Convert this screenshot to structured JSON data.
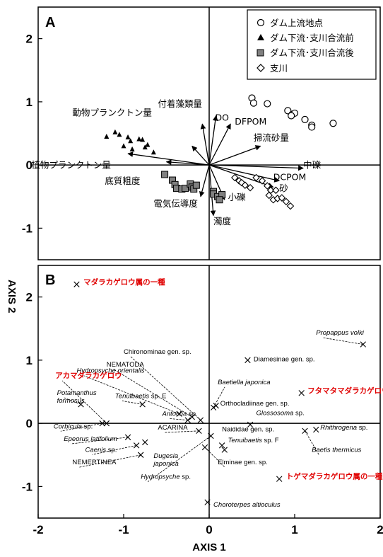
{
  "chart_data": [
    {
      "type": "scatter",
      "panel_label": "A",
      "xlim": [
        -2,
        2
      ],
      "ylim": [
        -1.5,
        2.5
      ],
      "yticks": [
        "2",
        "1",
        "0",
        "-1"
      ],
      "axis_label_y": "AXIS 2",
      "legend": {
        "placement": "top-right",
        "entries": [
          "ダム上流地点",
          "ダム下流･支川合流前",
          "ダム下流･支川合流後",
          "支川"
        ]
      },
      "series": [
        {
          "name": "ダム上流地点",
          "marker": "circle",
          "points": [
            [
              0.5,
              1.06
            ],
            [
              0.52,
              0.98
            ],
            [
              0.68,
              0.97
            ],
            [
              0.92,
              0.86
            ],
            [
              0.97,
              0.8
            ],
            [
              1.0,
              0.82
            ],
            [
              1.12,
              0.72
            ],
            [
              1.2,
              0.63
            ],
            [
              1.2,
              0.6
            ],
            [
              1.45,
              0.66
            ],
            [
              0.96,
              0.78
            ]
          ]
        },
        {
          "name": "ダム下流･支川合流前",
          "marker": "triangle",
          "points": [
            [
              -1.2,
              0.45
            ],
            [
              -1.1,
              0.52
            ],
            [
              -1.05,
              0.48
            ],
            [
              -0.95,
              0.44
            ],
            [
              -0.92,
              0.38
            ],
            [
              -0.82,
              0.41
            ],
            [
              -0.78,
              0.4
            ],
            [
              -0.72,
              0.32
            ],
            [
              -0.75,
              0.28
            ],
            [
              -1.0,
              0.3
            ],
            [
              -0.9,
              0.25
            ],
            [
              -0.65,
              0.2
            ]
          ]
        },
        {
          "name": "ダム下流･支川合流後",
          "marker": "square",
          "points": [
            [
              -0.52,
              -0.15
            ],
            [
              -0.43,
              -0.24
            ],
            [
              -0.4,
              -0.31
            ],
            [
              -0.38,
              -0.37
            ],
            [
              -0.32,
              -0.38
            ],
            [
              -0.28,
              -0.37
            ],
            [
              -0.22,
              -0.3
            ],
            [
              -0.2,
              -0.35
            ],
            [
              -0.18,
              -0.38
            ],
            [
              -0.15,
              -0.32
            ],
            [
              0.05,
              -0.42
            ],
            [
              0.05,
              -0.46
            ],
            [
              0.1,
              -0.5
            ],
            [
              0.15,
              -0.47
            ],
            [
              0.12,
              -0.55
            ]
          ]
        },
        {
          "name": "支川",
          "marker": "diamond",
          "points": [
            [
              0.3,
              -0.2
            ],
            [
              0.35,
              -0.25
            ],
            [
              0.38,
              -0.28
            ],
            [
              0.42,
              -0.32
            ],
            [
              0.48,
              -0.36
            ],
            [
              0.55,
              -0.2
            ],
            [
              0.62,
              -0.25
            ],
            [
              0.68,
              -0.33
            ],
            [
              0.72,
              -0.4
            ],
            [
              0.7,
              -0.48
            ],
            [
              0.75,
              -0.55
            ],
            [
              0.8,
              -0.53
            ],
            [
              0.85,
              -0.52
            ],
            [
              0.9,
              -0.58
            ],
            [
              0.95,
              -0.65
            ],
            [
              0.78,
              -0.4
            ]
          ]
        }
      ],
      "vectors": [
        {
          "label": "付着藻類量",
          "x": -0.08,
          "y": 0.65,
          "lx": -0.6,
          "ly": 0.92
        },
        {
          "label": "動物プランクトン量",
          "x": -0.2,
          "y": 0.3,
          "lx": -1.6,
          "ly": 0.78
        },
        {
          "label": "DO",
          "x": 0.08,
          "y": 0.78,
          "lx": 0.07,
          "ly": 0.7
        },
        {
          "label": "DFPOM",
          "x": 0.25,
          "y": 0.65,
          "lx": 0.3,
          "ly": 0.64
        },
        {
          "label": "掃流砂量",
          "x": 0.6,
          "y": 0.3,
          "lx": 0.52,
          "ly": 0.38
        },
        {
          "label": "植物プランクトン量",
          "x": -0.95,
          "y": 0.18,
          "lx": -2.08,
          "ly": -0.05
        },
        {
          "label": "底質粗度",
          "x": -0.5,
          "y": 0.05,
          "lx": -1.22,
          "ly": -0.3
        },
        {
          "label": "中礫",
          "x": 1.1,
          "y": -0.05,
          "lx": 1.1,
          "ly": -0.05
        },
        {
          "label": "DCPOM",
          "x": 0.82,
          "y": -0.25,
          "lx": 0.75,
          "ly": -0.24
        },
        {
          "label": "砂",
          "x": 0.75,
          "y": -0.35,
          "lx": 0.82,
          "ly": -0.42
        },
        {
          "label": "電気伝導度",
          "x": -0.1,
          "y": -0.5,
          "lx": -0.65,
          "ly": -0.66
        },
        {
          "label": "小礫",
          "x": 0.18,
          "y": -0.55,
          "lx": 0.22,
          "ly": -0.56
        },
        {
          "label": "濁度",
          "x": 0.05,
          "y": -0.8,
          "lx": 0.05,
          "ly": -0.94
        }
      ]
    },
    {
      "type": "scatter",
      "panel_label": "B",
      "xlim": [
        -2,
        2
      ],
      "ylim": [
        -1.5,
        2.5
      ],
      "xticks": [
        "-2",
        "-1",
        "0",
        "1",
        "2"
      ],
      "yticks": [
        "2",
        "1",
        "0",
        "-1"
      ],
      "axis_label_x": "AXIS 1",
      "species": [
        {
          "label": "マダラカゲロウ属の一種",
          "x": -1.55,
          "y": 2.2,
          "style": "red",
          "lx": -1.47,
          "ly": 2.2
        },
        {
          "label": "Propappus volki",
          "x": 1.8,
          "y": 1.25,
          "style": "italic",
          "lx": 1.25,
          "ly": 1.4
        },
        {
          "label": "Diamesinae gen. sp.",
          "x": 0.45,
          "y": 1.0,
          "style": "normal",
          "lx": 0.52,
          "ly": 0.98
        },
        {
          "label": "Chironominae gen. sp.",
          "x": -0.1,
          "y": 0.05,
          "style": "normal",
          "lx": -1.0,
          "ly": 1.1
        },
        {
          "label": "NEMATODA",
          "x": -0.2,
          "y": 0.1,
          "style": "normal",
          "lx": -1.2,
          "ly": 0.9
        },
        {
          "label": "Hydropsyche orientalis",
          "x": -0.35,
          "y": 0.15,
          "style": "italic",
          "lx": -1.55,
          "ly": 0.8
        },
        {
          "label": "Baetiella japonica",
          "x": 0.05,
          "y": 0.25,
          "style": "italic",
          "lx": 0.1,
          "ly": 0.62
        },
        {
          "label": "アカマダラカゲロウ",
          "x": -1.2,
          "y": 0.0,
          "style": "red",
          "lx": -1.8,
          "ly": 0.72
        },
        {
          "label": "フタマタマダラカゲロウ",
          "x": 1.08,
          "y": 0.48,
          "style": "red",
          "lx": 1.15,
          "ly": 0.48
        },
        {
          "label": "Tenuibaetis sp. E",
          "x": -0.78,
          "y": 0.3,
          "style": "mixed",
          "lx": -1.1,
          "ly": 0.4
        },
        {
          "label": "Potamanthus formosus",
          "x": -1.5,
          "y": 0.3,
          "style": "italic",
          "lx": -1.78,
          "ly": 0.45
        },
        {
          "label": "Orthocladiinae gen. sp.",
          "x": 0.08,
          "y": 0.28,
          "style": "normal",
          "lx": 0.13,
          "ly": 0.28
        },
        {
          "label": "Antocha sp.",
          "x": -0.25,
          "y": 0.05,
          "style": "mixed",
          "lx": -0.55,
          "ly": 0.12
        },
        {
          "label": "Glossosoma sp.",
          "x": 0.48,
          "y": -0.02,
          "style": "mixed",
          "lx": 0.55,
          "ly": 0.13
        },
        {
          "label": "Corbicula sp.",
          "x": -1.25,
          "y": 0.0,
          "style": "mixed",
          "lx": -1.82,
          "ly": -0.08
        },
        {
          "label": "ACARINA",
          "x": -0.12,
          "y": -0.12,
          "style": "normal",
          "lx": -0.6,
          "ly": -0.1
        },
        {
          "label": "Naididae gen. sp.",
          "x": 0.15,
          "y": -0.35,
          "style": "normal",
          "lx": 0.15,
          "ly": -0.13
        },
        {
          "label": "Rhithrogena sp.",
          "x": 1.25,
          "y": -0.1,
          "style": "mixed",
          "lx": 1.3,
          "ly": -0.1
        },
        {
          "label": "Epeorus latifolium",
          "x": -0.95,
          "y": -0.22,
          "style": "italic",
          "lx": -1.7,
          "ly": -0.28
        },
        {
          "label": "Tenuibaetis sp. F",
          "x": 0.18,
          "y": -0.42,
          "style": "mixed",
          "lx": 0.22,
          "ly": -0.3
        },
        {
          "label": "Baetis thermicus",
          "x": 1.12,
          "y": -0.12,
          "style": "italic",
          "lx": 1.2,
          "ly": -0.45
        },
        {
          "label": "Caenis sp.",
          "x": -0.85,
          "y": -0.35,
          "style": "mixed",
          "lx": -1.45,
          "ly": -0.45
        },
        {
          "label": "Dugesia japonica",
          "x": -0.75,
          "y": -0.3,
          "style": "italic",
          "lx": -0.65,
          "ly": -0.55
        },
        {
          "label": "NEMERTINEA",
          "x": -0.8,
          "y": -0.5,
          "style": "normal",
          "lx": -1.6,
          "ly": -0.65
        },
        {
          "label": "Elminae gen. sp.",
          "x": -0.05,
          "y": -0.38,
          "style": "normal",
          "lx": 0.1,
          "ly": -0.65
        },
        {
          "label": "Hydropsyche sp.",
          "x": 0.02,
          "y": -0.2,
          "style": "mixed",
          "lx": -0.8,
          "ly": -0.88
        },
        {
          "label": "トゲマダラカゲロウ属の一種",
          "x": 0.82,
          "y": -0.88,
          "style": "red",
          "lx": 0.9,
          "ly": -0.88
        },
        {
          "label": "Choroterpes altioculus",
          "x": -0.02,
          "y": -1.25,
          "style": "italic",
          "lx": 0.05,
          "ly": -1.32
        }
      ]
    }
  ],
  "icons": {
    "circle": "circle-marker-icon",
    "triangle": "triangle-marker-icon",
    "square": "square-marker-icon",
    "diamond": "diamond-marker-icon",
    "cross": "x-marker-icon"
  },
  "colors": {
    "square_fill": "#808080",
    "red_label": "#e00000",
    "line": "#000000"
  }
}
